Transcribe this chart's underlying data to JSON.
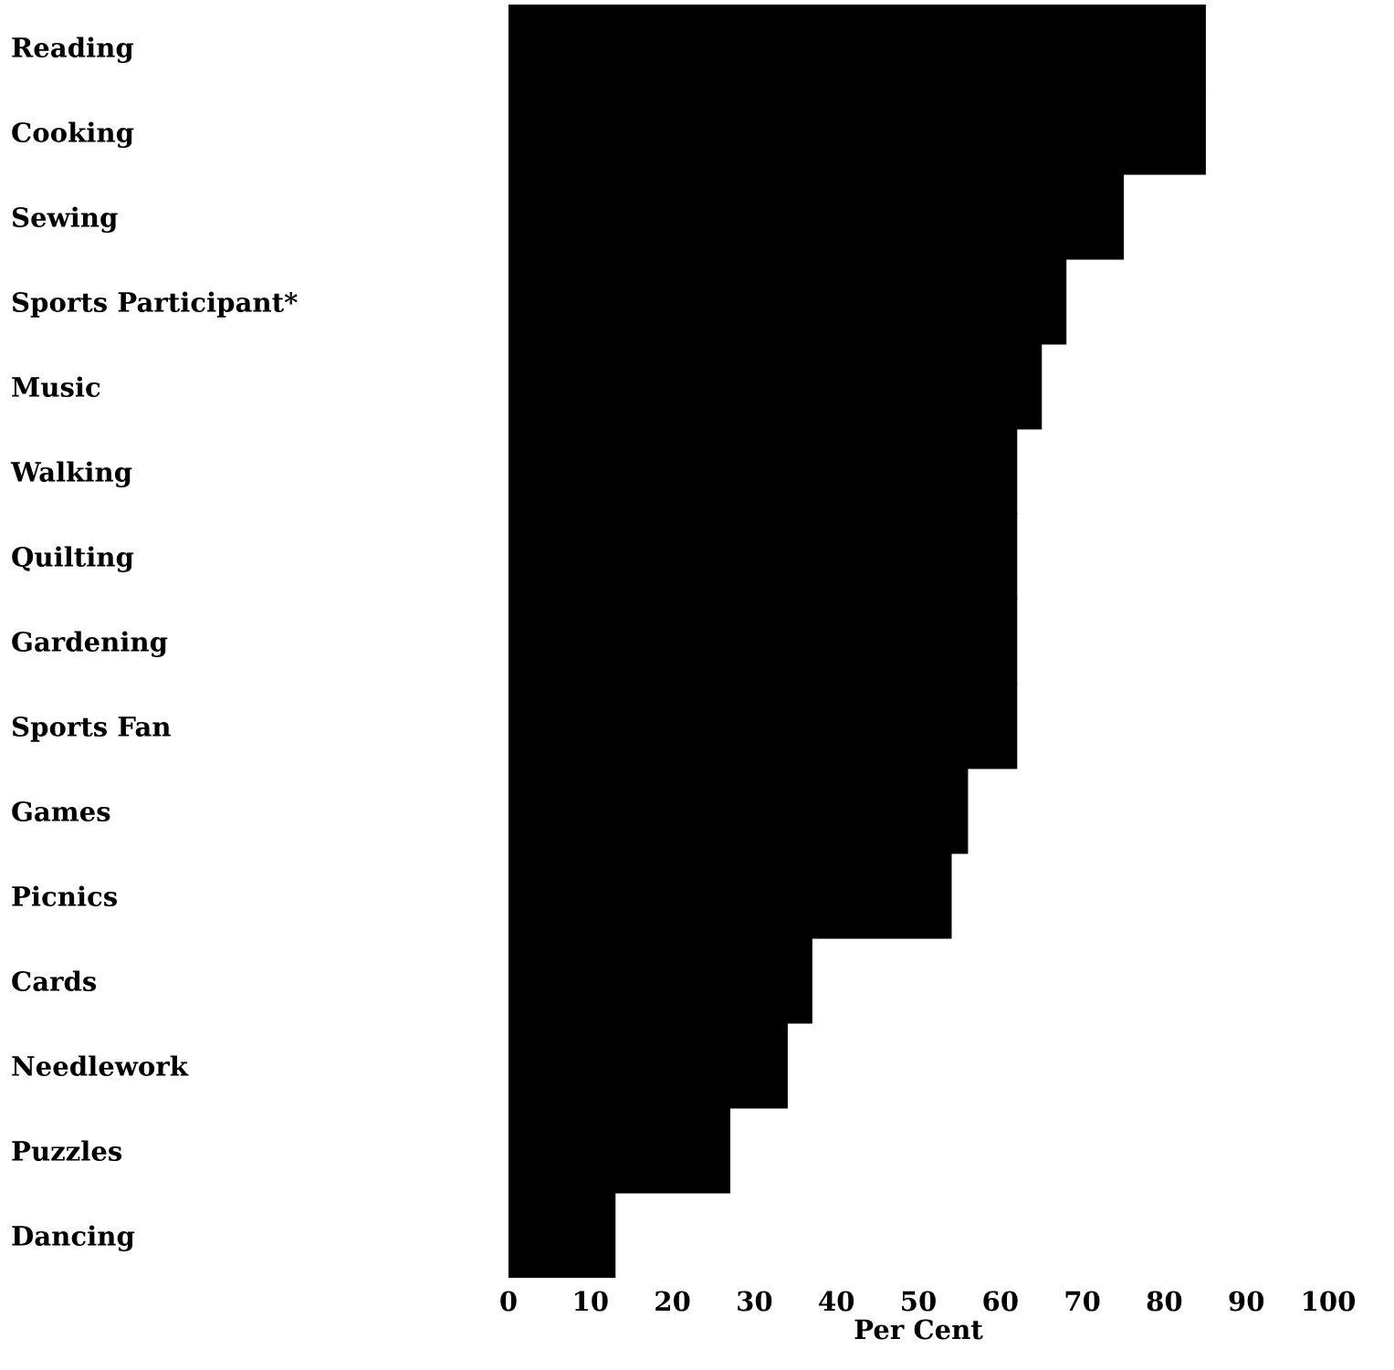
{
  "chart_data": {
    "type": "bar",
    "orientation": "horizontal",
    "xlabel": "Per Cent",
    "categories": [
      "Reading",
      "Cooking",
      "Sewing",
      "Sports Participant*",
      "Music",
      "Walking",
      "Quilting",
      "Gardening",
      "Sports Fan",
      "Games",
      "Picnics",
      "Cards",
      "Needlework",
      "Puzzles",
      "Dancing"
    ],
    "values": [
      85,
      85,
      75,
      68,
      65,
      62,
      62,
      62,
      62,
      56,
      54,
      37,
      34,
      27,
      13
    ],
    "color": "#000000",
    "xlim": [
      0,
      100
    ],
    "xticks": [
      0,
      10,
      20,
      30,
      40,
      50,
      60,
      70,
      80,
      90,
      100
    ],
    "grid": false,
    "legend": false
  }
}
